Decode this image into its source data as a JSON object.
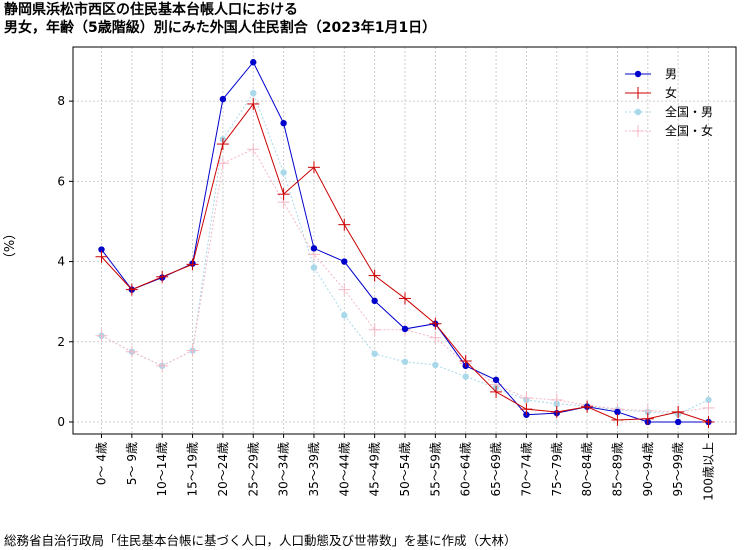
{
  "title_line1": "静岡県浜松市西区の住民基本台帳人口における",
  "title_line2": "男女，年齢（5歳階級）別にみた外国人住民割合（2023年1月1日）",
  "source": "総務省自治行政局「住民基本台帳に基づく人口，人口動態及び世帯数」を基に作成（大林）",
  "chart_data": {
    "type": "line",
    "title": "静岡県浜松市西区の住民基本台帳人口における 男女，年齢（5歳階級）別にみた外国人住民割合（2023年1月1日）",
    "ylabel": "（%）",
    "xlabel": "",
    "ylim": [
      -0.3,
      9.35
    ],
    "yticks": [
      0,
      2,
      4,
      6,
      8
    ],
    "grid": true,
    "legend_position": "top-right",
    "categories": [
      "0～ 4歳",
      "5～ 9歳",
      "10～14歳",
      "15～19歳",
      "20～24歳",
      "25～29歳",
      "30～34歳",
      "35～39歳",
      "40～44歳",
      "45～49歳",
      "50～54歳",
      "55～59歳",
      "60～64歳",
      "65～69歳",
      "70～74歳",
      "75～79歳",
      "80～84歳",
      "85～89歳",
      "90～94歳",
      "95～99歳",
      "100歳以上"
    ],
    "series": [
      {
        "name": "男",
        "color": "#0000cc",
        "marker": "dot",
        "dash": "none",
        "values": [
          4.3,
          3.3,
          3.6,
          3.95,
          8.05,
          8.97,
          7.45,
          4.33,
          4.0,
          3.02,
          2.32,
          2.45,
          1.4,
          1.05,
          0.18,
          0.22,
          0.38,
          0.25,
          0.0,
          0.0,
          0.0
        ]
      },
      {
        "name": "女",
        "color": "#cc0000",
        "marker": "plus",
        "dash": "none",
        "values": [
          4.12,
          3.3,
          3.62,
          3.93,
          6.93,
          7.93,
          5.68,
          6.35,
          4.92,
          3.65,
          3.08,
          2.45,
          1.52,
          0.75,
          0.32,
          0.25,
          0.38,
          0.05,
          0.08,
          0.25,
          0.0
        ]
      },
      {
        "name": "全国・男",
        "color": "#a8d8ea",
        "marker": "dot",
        "dash": "2,2",
        "values": [
          2.15,
          1.75,
          1.4,
          1.78,
          7.05,
          8.2,
          6.22,
          3.85,
          2.66,
          1.7,
          1.5,
          1.42,
          1.13,
          0.85,
          0.55,
          0.45,
          0.4,
          0.3,
          0.25,
          0.2,
          0.55
        ]
      },
      {
        "name": "全国・女",
        "color": "#f4b8c4",
        "marker": "plus",
        "dash": "2,2",
        "values": [
          2.15,
          1.75,
          1.4,
          1.78,
          6.45,
          6.8,
          5.48,
          4.18,
          3.3,
          2.3,
          2.3,
          2.1,
          1.46,
          0.93,
          0.6,
          0.55,
          0.42,
          0.32,
          0.28,
          0.25,
          0.35
        ]
      }
    ]
  }
}
